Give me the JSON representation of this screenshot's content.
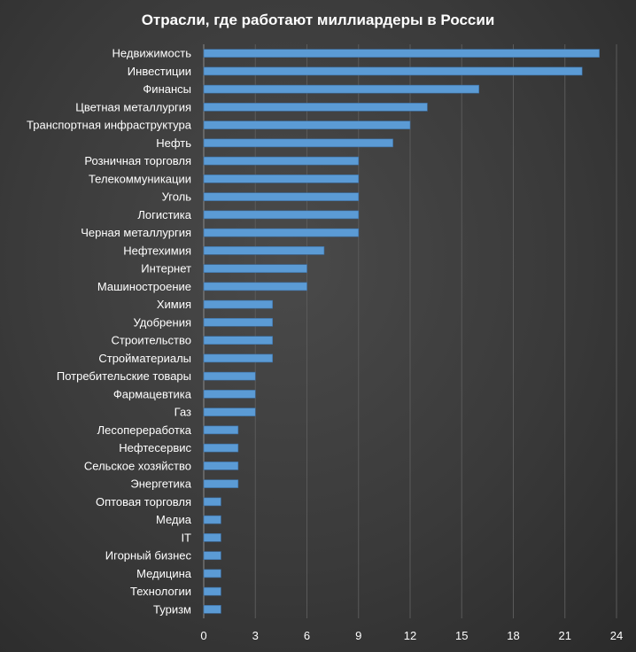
{
  "chart_data": {
    "type": "bar",
    "orientation": "horizontal",
    "title": "Отрасли,  где  работают  миллиардеры  в  России",
    "categories": [
      "Недвижимость",
      "Инвестиции",
      "Финансы",
      "Цветная металлургия",
      "Транспортная инфраструктура",
      "Нефть",
      "Розничная торговля",
      "Телекоммуникации",
      "Уголь",
      "Логистика",
      "Черная металлургия",
      "Нефтехимия",
      "Интернет",
      "Машиностроение",
      "Химия",
      "Удобрения",
      "Строительство",
      "Стройматериалы",
      "Потребительские товары",
      "Фармацевтика",
      "Газ",
      "Лесопереработка",
      "Нефтесервис",
      "Сельское хозяйство",
      "Энергетика",
      "Оптовая торговля",
      "Медиа",
      "IT",
      "Игорный бизнес",
      "Медицина",
      "Технологии",
      "Туризм"
    ],
    "values": [
      23,
      22,
      16,
      13,
      12,
      11,
      9,
      9,
      9,
      9,
      9,
      7,
      6,
      6,
      4,
      4,
      4,
      4,
      3,
      3,
      3,
      2,
      2,
      2,
      2,
      1,
      1,
      1,
      1,
      1,
      1,
      1
    ],
    "xlim": [
      0,
      24
    ],
    "xticks": [
      "0",
      "3",
      "6",
      "9",
      "12",
      "15",
      "18",
      "21",
      "24"
    ],
    "grid": true,
    "colors": {
      "bar": "#5b9bd5",
      "bar_edge": "#3d6fa3",
      "text": "#ffffff",
      "grid": "#5a5a5a"
    }
  }
}
